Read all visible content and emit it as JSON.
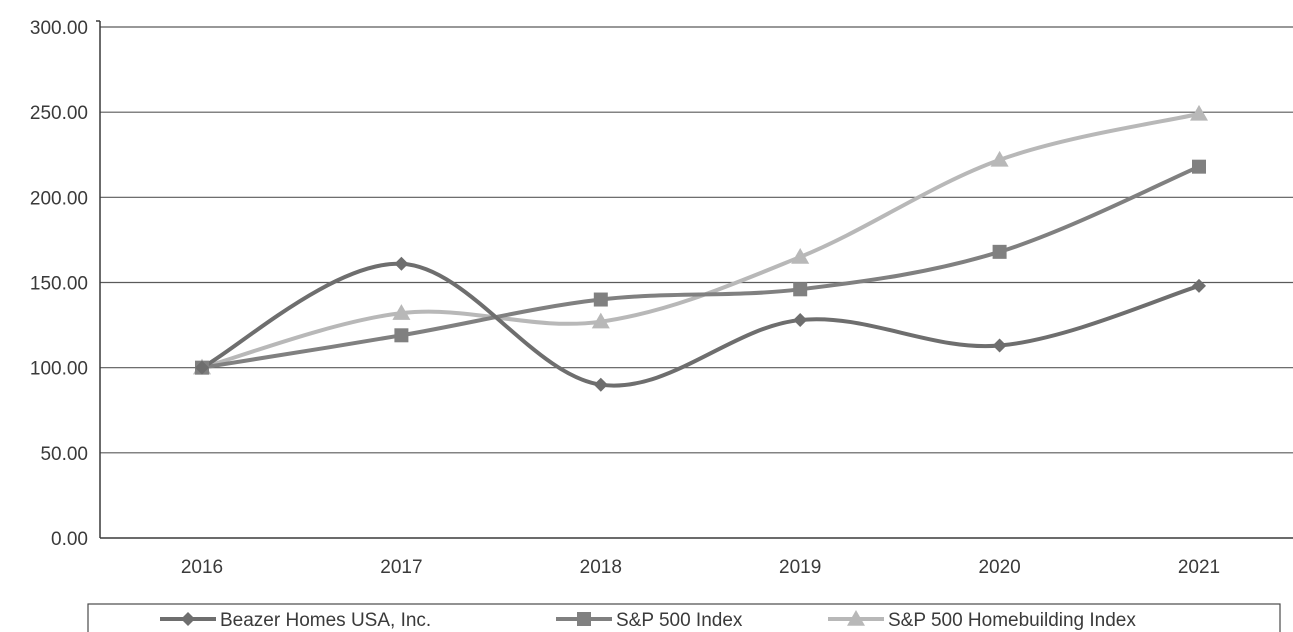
{
  "chart_data": {
    "type": "line",
    "categories": [
      "2016",
      "2017",
      "2018",
      "2019",
      "2020",
      "2021"
    ],
    "ylim": [
      0,
      300
    ],
    "yticks": [
      0,
      50,
      100,
      150,
      200,
      250,
      300
    ],
    "ytick_labels": [
      "0.00",
      "50.00",
      "100.00",
      "150.00",
      "200.00",
      "250.00",
      "300.00"
    ],
    "grid": true,
    "legend_position": "bottom",
    "series": [
      {
        "name": "Beazer Homes USA, Inc.",
        "marker": "diamond",
        "color": "#6e6e6e",
        "values": [
          100,
          161,
          90,
          128,
          113,
          148
        ]
      },
      {
        "name": "S&P 500 Index",
        "marker": "square",
        "color": "#808080",
        "values": [
          100,
          119,
          140,
          146,
          168,
          218
        ]
      },
      {
        "name": "S&P 500 Homebuilding Index",
        "marker": "triangle",
        "color": "#b8b8b8",
        "values": [
          100,
          132,
          127,
          165,
          222,
          249
        ]
      }
    ]
  }
}
